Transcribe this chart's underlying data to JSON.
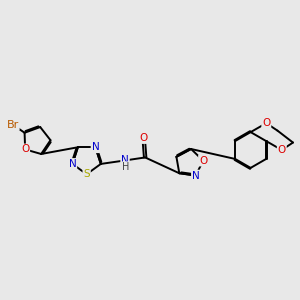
{
  "bg_color": "#e8e8e8",
  "bond_color": "#000000",
  "bond_width": 1.4,
  "atom_colors": {
    "Br": "#b85a00",
    "O": "#dd0000",
    "N": "#0000cc",
    "S": "#aaaa00",
    "C": "#000000",
    "H": "#444444"
  },
  "font_size": 7.5,
  "fig_width": 3.0,
  "fig_height": 3.0,
  "dpi": 100
}
